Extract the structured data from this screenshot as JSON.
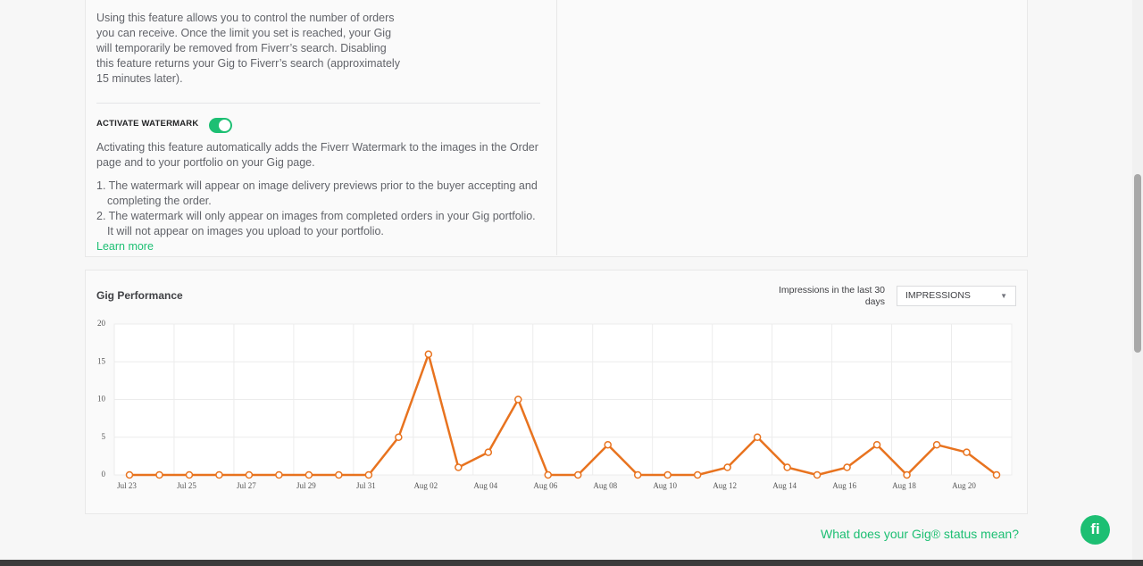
{
  "limit_section": {
    "description": "Using this feature allows you to control the number of orders you can receive. Once the limit you set is reached, your Gig will temporarily be removed from Fiverr’s search. Disabling this feature returns your Gig to Fiverr’s search (approximately 15 minutes later)."
  },
  "watermark": {
    "label": "ACTIVATE WATERMARK",
    "description": "Activating this feature automatically adds the Fiverr Watermark to the images in the Order page and to your portfolio on your Gig page.",
    "items": [
      "1. The watermark will appear on image delivery previews prior to the buyer accepting and completing the order.",
      "2. The watermark will only appear on images from completed orders in your Gig portfolio. It will not appear on images you upload to your portfolio."
    ],
    "learn_more": "Learn more"
  },
  "performance_controls": {
    "range_label": "Impressions in the last 30 days",
    "metric": "IMPRESSIONS"
  },
  "chart_data": {
    "type": "line",
    "title": "Gig Performance",
    "categories": [
      "Jul 23",
      null,
      "Jul 25",
      null,
      "Jul 27",
      null,
      "Jul 29",
      null,
      "Jul 31",
      null,
      "Aug 02",
      null,
      "Aug 04",
      null,
      "Aug 06",
      null,
      "Aug 08",
      null,
      "Aug 10",
      null,
      "Aug 12",
      null,
      "Aug 14",
      null,
      "Aug 16",
      null,
      "Aug 18",
      null,
      "Aug 20",
      null
    ],
    "series": [
      {
        "name": "Impressions",
        "color": "#e8731f",
        "values": [
          0,
          0,
          0,
          0,
          0,
          0,
          0,
          0,
          0,
          5,
          16,
          1,
          3,
          10,
          0,
          0,
          4,
          0,
          0,
          0,
          1,
          5,
          1,
          0,
          1,
          4,
          0,
          4,
          3,
          0
        ]
      }
    ],
    "ylim": [
      0,
      20
    ],
    "yticks": [
      0,
      5,
      10,
      15,
      20
    ],
    "grid": true
  },
  "footer": {
    "status_link": "What does your Gig® status mean?",
    "logo": "fi"
  }
}
